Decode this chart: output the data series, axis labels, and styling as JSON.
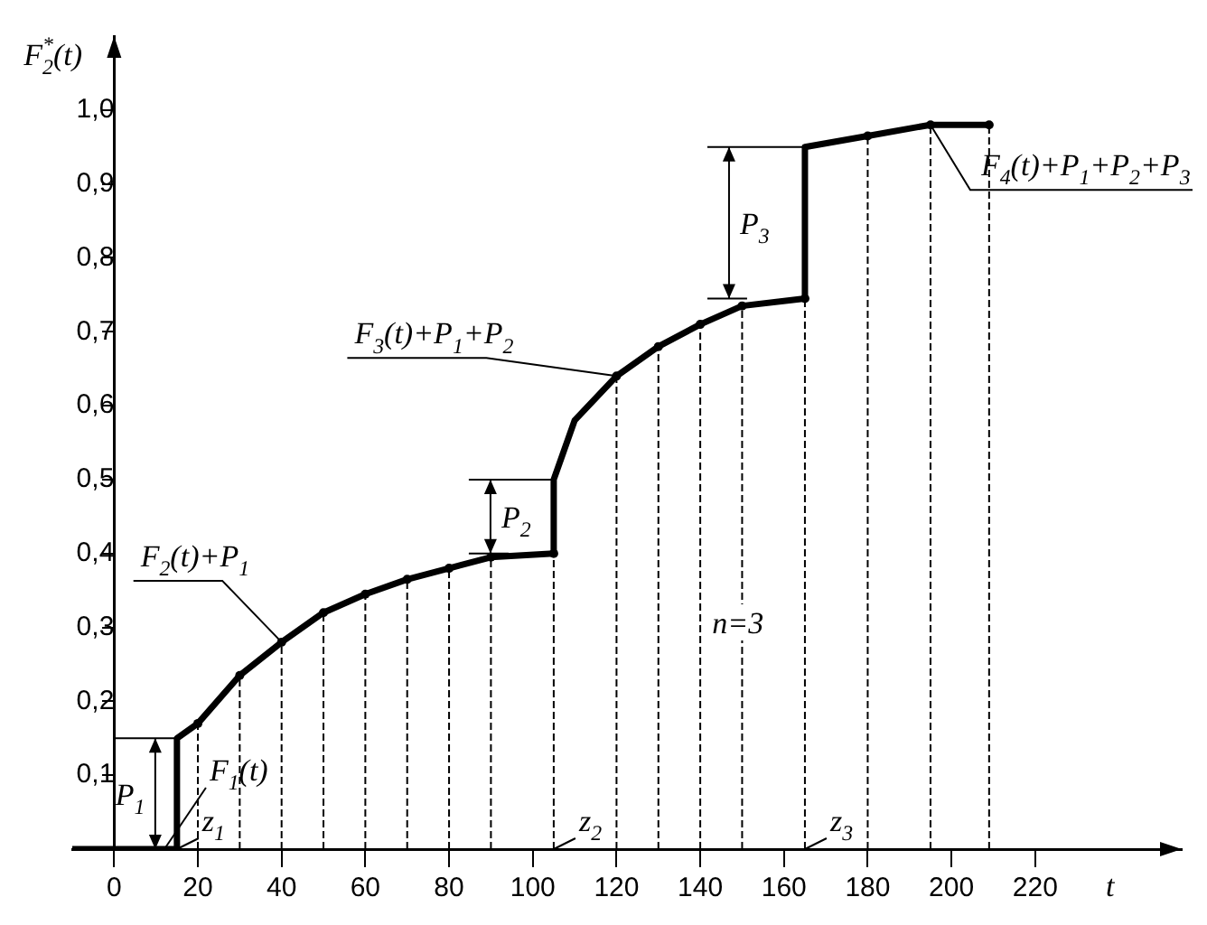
{
  "chart_data": {
    "type": "line",
    "xlabel": "t",
    "ylabel": "F$_{2}$$^{*}$(t)",
    "x": [
      -10,
      15,
      15,
      20,
      30,
      40,
      50,
      60,
      70,
      80,
      90,
      105,
      105,
      110,
      120,
      130,
      140,
      150,
      165,
      165,
      180,
      195,
      209
    ],
    "series": [
      {
        "color": "#000000",
        "values": [
          0,
          0,
          0.15,
          0.17,
          0.235,
          0.28,
          0.32,
          0.345,
          0.365,
          0.38,
          0.395,
          0.4,
          0.5,
          0.58,
          0.64,
          0.68,
          0.71,
          0.735,
          0.745,
          0.95,
          0.965,
          0.98,
          0.98
        ]
      },
      {
        "type": "lollipop",
        "color": "#000000",
        "line_style": "dashed",
        "marker": "circle",
        "x": [
          20,
          30,
          40,
          50,
          60,
          70,
          80,
          90,
          105,
          120,
          130,
          140,
          150,
          165,
          180,
          195,
          209
        ],
        "values": [
          0.17,
          0.235,
          0.28,
          0.32,
          0.345,
          0.365,
          0.38,
          0.395,
          0.4,
          0.64,
          0.68,
          0.71,
          0.735,
          0.745,
          0.965,
          0.98,
          0.98
        ]
      }
    ],
    "xlim": [
      -10,
      255
    ],
    "xticks": [
      0,
      20,
      40,
      60,
      80,
      100,
      120,
      140,
      160,
      180,
      200,
      220
    ],
    "ylim": [
      0,
      1.1
    ],
    "yticks": [
      {
        "value": 0.1,
        "label": "0,1"
      },
      {
        "value": 0.2,
        "label": "0,2"
      },
      {
        "value": 0.3,
        "label": "0,3"
      },
      {
        "value": 0.4,
        "label": "0,4"
      },
      {
        "value": 0.5,
        "label": "0,5"
      },
      {
        "value": 0.6,
        "label": "0,6"
      },
      {
        "value": 0.7,
        "label": "0,7"
      },
      {
        "value": 0.8,
        "label": "0,8"
      },
      {
        "value": 0.9,
        "label": "0,9"
      },
      {
        "value": 1.0,
        "label": "1,0"
      }
    ],
    "annotations": [
      {
        "text": "F$_{2}$(t)+P$_{1}$",
        "x": 40,
        "y": 0.28
      },
      {
        "text": "F$_{3}$(t)+P$_{1}$+P$_{2}$",
        "x": 120,
        "y": 0.64
      },
      {
        "text": "F$_{4}$(t)+P$_{1}$+P$_{2}$+P$_{3}$",
        "x": 195,
        "y": 0.98
      },
      {
        "text": "F$_{1}$(t)",
        "x": 12,
        "y": 0
      },
      {
        "text": "P$_{1}$",
        "x": 15,
        "y": 0.15
      },
      {
        "text": "P$_{2}$",
        "x": 105,
        "y": 0.5
      },
      {
        "text": "P$_{3}$",
        "x": 165,
        "y": 0.95
      },
      {
        "text": "z$_{1}$",
        "x": 15,
        "y": 0
      },
      "z$_{2}$",
      "z$_{3}$",
      "n=3"
    ],
    "legend": false,
    "marker": "none",
    "line_style": "solid"
  }
}
